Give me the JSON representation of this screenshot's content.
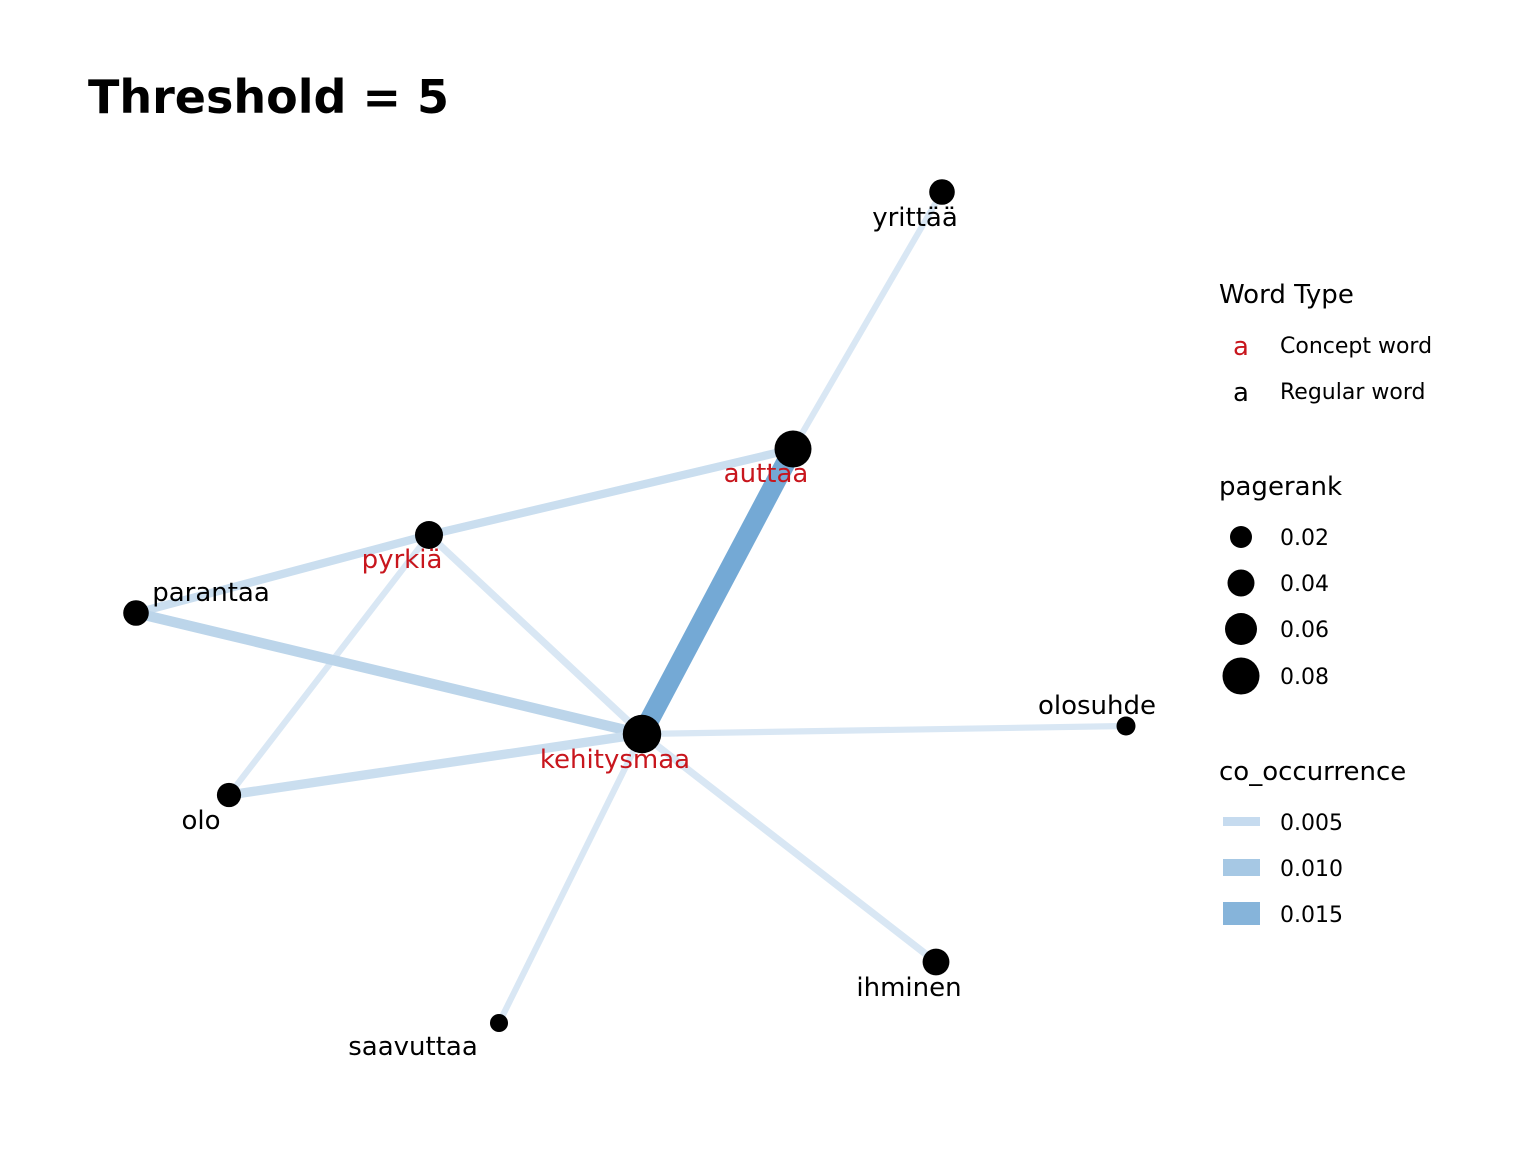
{
  "title": "Threshold = 5",
  "colors": {
    "concept": "#c8161d",
    "regular": "#000000",
    "edge_light": "#c6dbef",
    "edge_mid": "#9ecae1",
    "edge_dark": "#4292c6"
  },
  "legend": {
    "word_type": {
      "title": "Word Type",
      "glyph": "a",
      "items": [
        {
          "label": "Concept word",
          "type": "concept"
        },
        {
          "label": "Regular word",
          "type": "regular"
        }
      ]
    },
    "pagerank": {
      "title": "pagerank",
      "items": [
        {
          "label": "0.02",
          "value": 0.02
        },
        {
          "label": "0.04",
          "value": 0.04
        },
        {
          "label": "0.06",
          "value": 0.06
        },
        {
          "label": "0.08",
          "value": 0.08
        }
      ]
    },
    "co_occurrence": {
      "title": "co_occurrence",
      "items": [
        {
          "label": "0.005",
          "value": 0.005
        },
        {
          "label": "0.010",
          "value": 0.01
        },
        {
          "label": "0.015",
          "value": 0.015
        }
      ]
    }
  },
  "nodes": [
    {
      "id": "yrittaa",
      "label": "yrittää",
      "type": "regular",
      "pagerank": 0.03
    },
    {
      "id": "auttaa",
      "label": "auttaa",
      "type": "concept",
      "pagerank": 0.09
    },
    {
      "id": "pyrkia",
      "label": "pyrkiä",
      "type": "concept",
      "pagerank": 0.04
    },
    {
      "id": "parantaa",
      "label": "parantaa",
      "type": "regular",
      "pagerank": 0.03
    },
    {
      "id": "kehitysmaa",
      "label": "kehitysmaa",
      "type": "concept",
      "pagerank": 0.1
    },
    {
      "id": "olosuhde",
      "label": "olosuhde",
      "type": "regular",
      "pagerank": 0.01
    },
    {
      "id": "olo",
      "label": "olo",
      "type": "regular",
      "pagerank": 0.025
    },
    {
      "id": "ihminen",
      "label": "ihminen",
      "type": "regular",
      "pagerank": 0.035
    },
    {
      "id": "saavuttaa",
      "label": "saavuttaa",
      "type": "regular",
      "pagerank": 0.008
    }
  ],
  "edges": [
    {
      "source": "auttaa",
      "target": "yrittaa",
      "co_occurrence": 0.004
    },
    {
      "source": "auttaa",
      "target": "kehitysmaa",
      "co_occurrence": 0.017
    },
    {
      "source": "auttaa",
      "target": "pyrkia",
      "co_occurrence": 0.006
    },
    {
      "source": "pyrkia",
      "target": "parantaa",
      "co_occurrence": 0.006
    },
    {
      "source": "pyrkia",
      "target": "kehitysmaa",
      "co_occurrence": 0.005
    },
    {
      "source": "pyrkia",
      "target": "olo",
      "co_occurrence": 0.004
    },
    {
      "source": "parantaa",
      "target": "kehitysmaa",
      "co_occurrence": 0.008
    },
    {
      "source": "olo",
      "target": "kehitysmaa",
      "co_occurrence": 0.007
    },
    {
      "source": "kehitysmaa",
      "target": "olosuhde",
      "co_occurrence": 0.004
    },
    {
      "source": "kehitysmaa",
      "target": "ihminen",
      "co_occurrence": 0.005
    },
    {
      "source": "kehitysmaa",
      "target": "saavuttaa",
      "co_occurrence": 0.004
    }
  ]
}
